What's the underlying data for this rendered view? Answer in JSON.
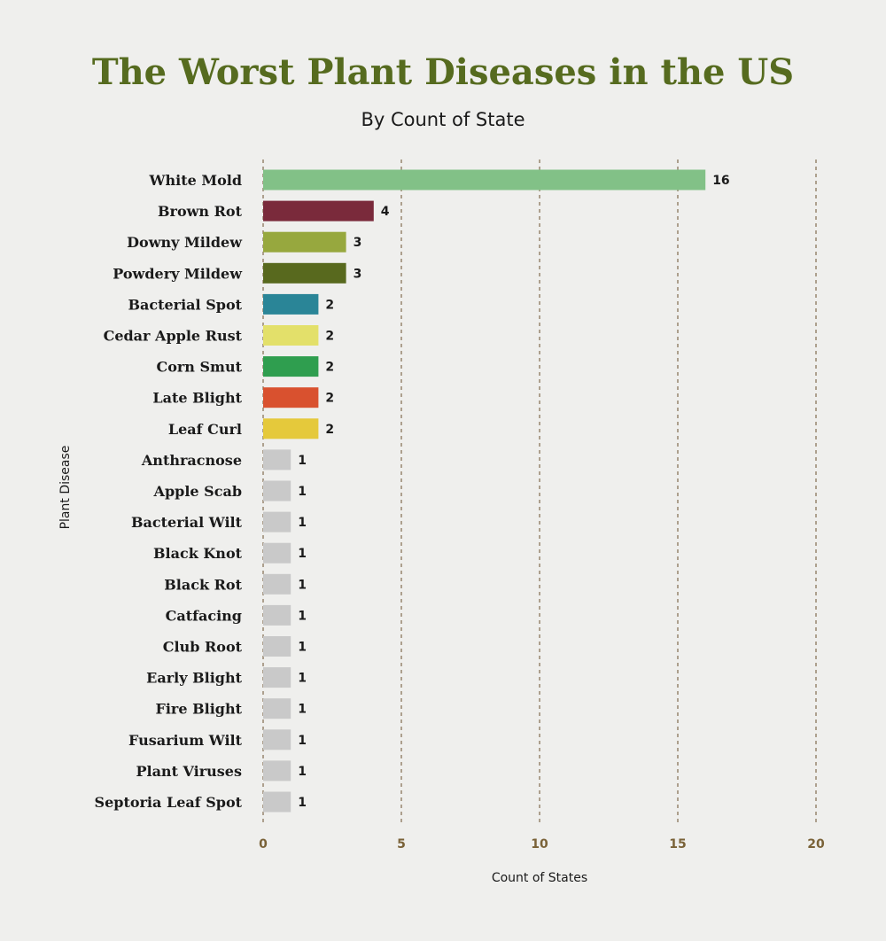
{
  "chart_data": {
    "type": "bar",
    "orientation": "horizontal",
    "title": "The Worst Plant Diseases in the US",
    "subtitle": "By Count of State",
    "xlabel": "Count of States",
    "ylabel": "Plant Disease",
    "xlim": [
      0,
      20
    ],
    "xticks": [
      0,
      5,
      10,
      15,
      20
    ],
    "grid": "vertical dashed",
    "legend": "none",
    "categories": [
      "White Mold",
      "Brown Rot",
      "Downy Mildew",
      "Powdery Mildew",
      "Bacterial Spot",
      "Cedar Apple Rust",
      "Corn Smut",
      "Late Blight",
      "Leaf Curl",
      "Anthracnose",
      "Apple Scab",
      "Bacterial Wilt",
      "Black Knot",
      "Black Rot",
      "Catfacing",
      "Club Root",
      "Early Blight",
      "Fire Blight",
      "Fusarium Wilt",
      "Plant Viruses",
      "Septoria Leaf Spot"
    ],
    "values": [
      16,
      4,
      3,
      3,
      2,
      2,
      2,
      2,
      2,
      1,
      1,
      1,
      1,
      1,
      1,
      1,
      1,
      1,
      1,
      1,
      1
    ],
    "colors": [
      "#82c187",
      "#7a2a3b",
      "#97a83e",
      "#58691e",
      "#2a8597",
      "#e3e06a",
      "#2f9e4f",
      "#d9512f",
      "#e5c93b",
      "#c9c9c9",
      "#c9c9c9",
      "#c9c9c9",
      "#c9c9c9",
      "#c9c9c9",
      "#c9c9c9",
      "#c9c9c9",
      "#c9c9c9",
      "#c9c9c9",
      "#c9c9c9",
      "#c9c9c9",
      "#c9c9c9"
    ]
  }
}
